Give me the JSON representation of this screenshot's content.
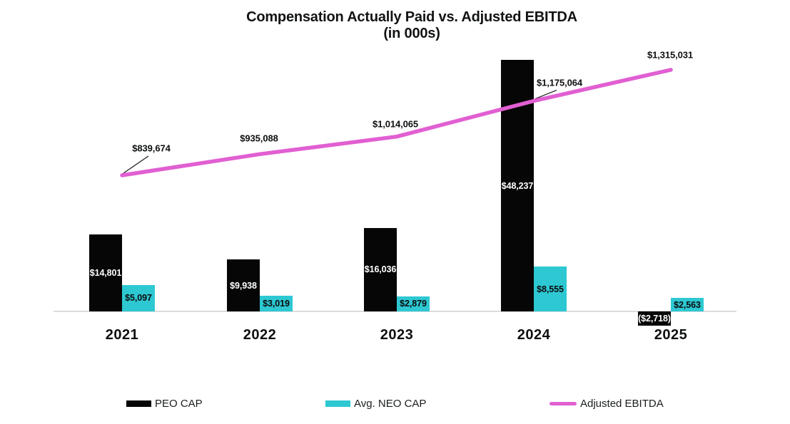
{
  "title": {
    "line1": "Compensation Actually Paid vs. Adjusted EBITDA",
    "line2": "(in 000s)"
  },
  "chart_data": {
    "type": "bar+line",
    "title": "Compensation Actually Paid vs. Adjusted EBITDA (in 000s)",
    "categories": [
      "2021",
      "2022",
      "2023",
      "2024",
      "2025"
    ],
    "series": [
      {
        "name": "PEO CAP",
        "type": "bar",
        "color": "#060606",
        "label_color": "#ffffff",
        "values": [
          14801,
          9938,
          16036,
          48237,
          -2718
        ],
        "labels": [
          "$14,801",
          "$9,938",
          "$16,036",
          "$48,237",
          "($2,718)"
        ]
      },
      {
        "name": "Avg. NEO CAP",
        "type": "bar",
        "color": "#2dc8d2",
        "label_color": "#0a0c0d",
        "values": [
          5097,
          3019,
          2879,
          8555,
          2563
        ],
        "labels": [
          "$5,097",
          "$3,019",
          "$2,879",
          "$8,555",
          "$2,563"
        ]
      },
      {
        "name": "Adjusted EBITDA",
        "type": "line",
        "color": "#e15fd2",
        "values": [
          839674,
          935088,
          1014065,
          1175064,
          1315031
        ],
        "labels": [
          "$839,674",
          "$935,088",
          "$1,014,065",
          "$1,175,064",
          "$1,315,031"
        ]
      }
    ],
    "bar_axis_max": 48237,
    "line_axis_range": [
      839674,
      1315031
    ],
    "grid": "off",
    "legend_position": "bottom",
    "y_axis_labels": "none"
  },
  "legend": {
    "items": [
      {
        "label": "PEO CAP"
      },
      {
        "label": "Avg. NEO CAP"
      },
      {
        "label": "Adjusted EBITDA"
      }
    ]
  }
}
